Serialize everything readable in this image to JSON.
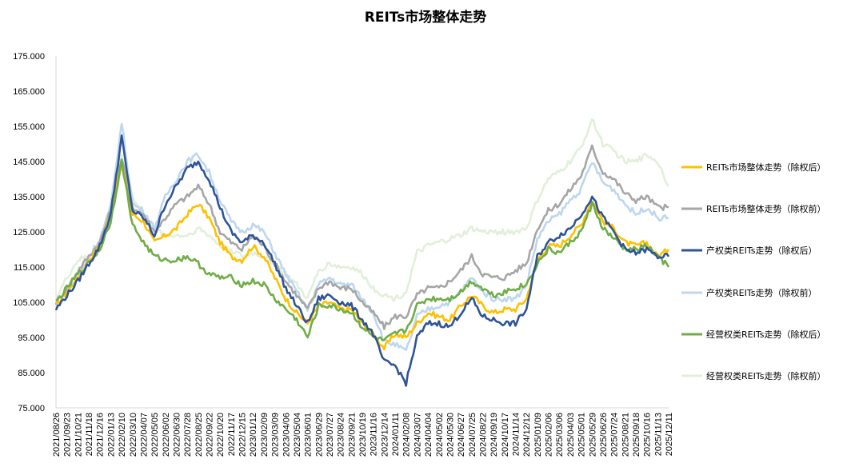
{
  "chart_data": {
    "type": "line",
    "title": "REITs市场整体走势",
    "xlabel": "",
    "ylabel": "",
    "ylim": [
      75,
      175
    ],
    "y_ticks": [
      "75.000",
      "85.000",
      "95.000",
      "105.000",
      "115.000",
      "125.000",
      "135.000",
      "145.000",
      "155.000",
      "165.000",
      "175.000"
    ],
    "grid": false,
    "legend_position": "right",
    "x": [
      "2021/08/26",
      "2021/09/23",
      "2021/10/21",
      "2021/11/18",
      "2021/12/16",
      "2022/01/13",
      "2022/02/10",
      "2022/03/10",
      "2022/04/07",
      "2022/05/05",
      "2022/06/02",
      "2022/06/30",
      "2022/07/28",
      "2022/08/25",
      "2022/09/22",
      "2022/10/20",
      "2022/11/17",
      "2022/12/15",
      "2023/01/12",
      "2023/02/09",
      "2023/03/09",
      "2023/04/06",
      "2023/05/04",
      "2023/06/01",
      "2023/06/29",
      "2023/07/27",
      "2023/08/24",
      "2023/09/21",
      "2023/10/19",
      "2023/11/16",
      "2023/12/14",
      "2024/01/11",
      "2024/02/08",
      "2024/03/07",
      "2024/04/04",
      "2024/05/02",
      "2024/05/30",
      "2024/06/27",
      "2024/07/25",
      "2024/08/22",
      "2024/09/19",
      "2024/10/17",
      "2024/11/14",
      "2024/12/12",
      "2025/01/09",
      "2025/02/06",
      "2025/03/06",
      "2025/04/03",
      "2025/05/01",
      "2025/05/29",
      "2025/06/26",
      "2025/07/24",
      "2025/08/21",
      "2025/09/18",
      "2025/10/16",
      "2025/11/13",
      "2025/12/11"
    ],
    "series": [
      {
        "name": "REITs市场整体走势（除权后）",
        "color": "#FFC000",
        "values": [
          104,
          108,
          112,
          117,
          121,
          130,
          144,
          130,
          128,
          122,
          124,
          126,
          130,
          133,
          129,
          122,
          118,
          117,
          121,
          118,
          112,
          106,
          102,
          99,
          104,
          105,
          103,
          103,
          99,
          96,
          92,
          96,
          95,
          99,
          102,
          101,
          100,
          104,
          107,
          104,
          102,
          103,
          103,
          106,
          117,
          121,
          121,
          124,
          127,
          134,
          128,
          126,
          122,
          121,
          122,
          118,
          120
        ]
      },
      {
        "name": "REITs市场整体走势（除权前）",
        "color": "#A6A6A6",
        "values": [
          105,
          109,
          114,
          118,
          122,
          131,
          146,
          132,
          130,
          125,
          129,
          133,
          135,
          138,
          133,
          125,
          122,
          120,
          124,
          121,
          116,
          111,
          107,
          103,
          109,
          111,
          109,
          109,
          105,
          102,
          98,
          101,
          101,
          107,
          109,
          109,
          111,
          114,
          118,
          113,
          112,
          112,
          114,
          116,
          126,
          131,
          133,
          137,
          141,
          149,
          142,
          140,
          136,
          134,
          135,
          132,
          132
        ]
      },
      {
        "name": "产权类REITs走势（除权后）",
        "color": "#2F5597",
        "values": [
          103,
          107,
          111,
          116,
          121,
          130,
          152,
          131,
          129,
          124,
          133,
          138,
          143,
          145,
          140,
          132,
          125,
          122,
          124,
          122,
          116,
          109,
          104,
          99,
          106,
          107,
          105,
          104,
          100,
          96,
          88,
          87,
          82,
          95,
          99,
          99,
          98,
          102,
          106,
          101,
          100,
          99,
          99,
          103,
          118,
          122,
          124,
          126,
          130,
          135,
          129,
          125,
          120,
          119,
          120,
          118,
          118
        ]
      },
      {
        "name": "产权类REITs走势（除权前）",
        "color": "#BDD7EE",
        "values": [
          104,
          108,
          112,
          118,
          123,
          132,
          156,
          133,
          131,
          126,
          135,
          140,
          145,
          147,
          142,
          134,
          128,
          125,
          127,
          125,
          119,
          113,
          108,
          103,
          110,
          112,
          110,
          110,
          106,
          102,
          94,
          93,
          91,
          101,
          103,
          104,
          105,
          108,
          112,
          108,
          106,
          106,
          106,
          110,
          123,
          128,
          130,
          134,
          137,
          145,
          139,
          137,
          133,
          130,
          132,
          129,
          129
        ]
      },
      {
        "name": "经营权类REITs走势（除权后）",
        "color": "#70AD47",
        "values": [
          105,
          109,
          113,
          116,
          120,
          128,
          145,
          127,
          122,
          118,
          117,
          117,
          118,
          116,
          113,
          112,
          112,
          110,
          111,
          110,
          106,
          103,
          100,
          95,
          104,
          104,
          103,
          102,
          98,
          95,
          94,
          96,
          97,
          104,
          106,
          106,
          106,
          108,
          111,
          109,
          107,
          108,
          109,
          110,
          116,
          120,
          119,
          122,
          125,
          133,
          126,
          123,
          120,
          120,
          121,
          118,
          115
        ]
      },
      {
        "name": "经营权类REITs走势（除权前）",
        "color": "#E2EFDA",
        "values": [
          106,
          112,
          117,
          118,
          122,
          131,
          147,
          135,
          130,
          126,
          124,
          124,
          124,
          126,
          124,
          121,
          120,
          118,
          119,
          118,
          116,
          113,
          110,
          106,
          114,
          116,
          115,
          115,
          113,
          109,
          107,
          106,
          108,
          119,
          121,
          122,
          123,
          124,
          126,
          125,
          125,
          125,
          125,
          126,
          134,
          140,
          142,
          145,
          149,
          157,
          150,
          148,
          145,
          145,
          147,
          145,
          138
        ]
      }
    ]
  }
}
